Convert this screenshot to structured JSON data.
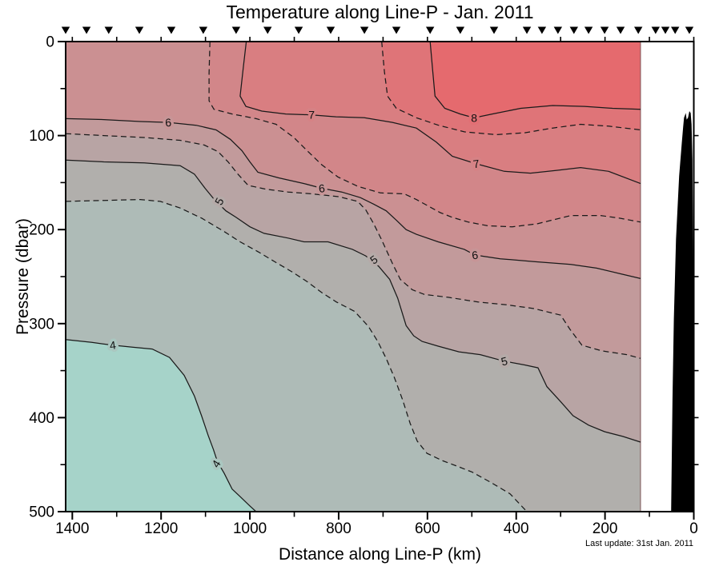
{
  "page": {
    "title": "Temperature along Line-P - Jan. 2011",
    "note": "Last update: 31st Jan. 2011"
  },
  "chart_data": {
    "type": "contour-section",
    "title": "Temperature along Line-P - Jan. 2011",
    "xlabel": "Distance along Line-P (km)",
    "ylabel": "Pressure (dbar)",
    "note": "Last update: 31st Jan. 2011",
    "xlim": [
      1415,
      0
    ],
    "ylim": [
      0,
      500
    ],
    "x_axis": {
      "major": [
        1400,
        1200,
        1000,
        800,
        600,
        400,
        200,
        0
      ],
      "minor": [
        1300,
        1100,
        900,
        700,
        500,
        300,
        100
      ],
      "top_ticks": [
        1400,
        1300,
        1200,
        1100,
        1000,
        900,
        800,
        700,
        600,
        500,
        400,
        300,
        200,
        100,
        0
      ]
    },
    "y_axis": {
      "major": [
        0,
        100,
        200,
        300,
        400,
        500
      ],
      "minor": [
        50,
        150,
        250,
        350,
        450
      ],
      "right_ticks": [
        50,
        100,
        150,
        200,
        250,
        300,
        350,
        400,
        450
      ]
    },
    "data_edge_km": 120,
    "stations_km": [
      1415,
      1368,
      1318,
      1249,
      1177,
      1105,
      1031,
      960,
      890,
      818,
      742,
      670,
      594,
      526,
      450,
      376,
      342,
      306,
      270,
      237,
      201,
      165,
      125,
      86,
      64,
      42,
      10
    ],
    "bands": [
      {
        "range": ">8",
        "color": "#e56a6e"
      },
      {
        "range": "7.5-8",
        "color": "#df7478"
      },
      {
        "range": "7-7.5",
        "color": "#d97e81"
      },
      {
        "range": "6.5-7",
        "color": "#d28689"
      },
      {
        "range": "6-6.5",
        "color": "#cb9092"
      },
      {
        "range": "5.5-6",
        "color": "#c29a9b"
      },
      {
        "range": "5-5.5",
        "color": "#b8a4a4"
      },
      {
        "range": "4.5-5",
        "color": "#b1afac"
      },
      {
        "range": "4-4.5",
        "color": "#aebbb7"
      },
      {
        "range": "<4",
        "color": "#a6d3c9"
      }
    ],
    "contours": [
      {
        "level": 8,
        "style": "solid",
        "points": [
          [
            594,
            0
          ],
          [
            588,
            32
          ],
          [
            583,
            58
          ],
          [
            561,
            71
          ],
          [
            526,
            77
          ],
          [
            495,
            81
          ],
          [
            454,
            77
          ],
          [
            390,
            71
          ],
          [
            318,
            68
          ],
          [
            246,
            69
          ],
          [
            183,
            71
          ],
          [
            120,
            72
          ]
        ]
      },
      {
        "level": 7.5,
        "style": "dashed",
        "points": [
          [
            703,
            0
          ],
          [
            697,
            32
          ],
          [
            690,
            58
          ],
          [
            670,
            71
          ],
          [
            625,
            81
          ],
          [
            575,
            89
          ],
          [
            517,
            96
          ],
          [
            445,
            99
          ],
          [
            381,
            97
          ],
          [
            318,
            92
          ],
          [
            255,
            88
          ],
          [
            192,
            90
          ],
          [
            120,
            94
          ]
        ]
      },
      {
        "level": 7,
        "style": "solid",
        "points": [
          [
            1008,
            0
          ],
          [
            1015,
            28
          ],
          [
            1022,
            58
          ],
          [
            1009,
            69
          ],
          [
            973,
            74
          ],
          [
            919,
            77
          ],
          [
            861,
            78
          ],
          [
            806,
            80
          ],
          [
            742,
            81
          ],
          [
            679,
            86
          ],
          [
            625,
            92
          ],
          [
            580,
            107
          ],
          [
            544,
            122
          ],
          [
            490,
            130
          ],
          [
            427,
            138
          ],
          [
            368,
            140
          ],
          [
            309,
            137
          ],
          [
            255,
            134
          ],
          [
            192,
            138
          ],
          [
            120,
            151
          ]
        ]
      },
      {
        "level": 6.5,
        "style": "dashed",
        "points": [
          [
            1090,
            0
          ],
          [
            1092,
            34
          ],
          [
            1092,
            63
          ],
          [
            1081,
            72
          ],
          [
            1040,
            77
          ],
          [
            986,
            82
          ],
          [
            941,
            88
          ],
          [
            901,
            102
          ],
          [
            869,
            117
          ],
          [
            838,
            131
          ],
          [
            802,
            144
          ],
          [
            757,
            154
          ],
          [
            706,
            161
          ],
          [
            652,
            162
          ],
          [
            625,
            168
          ],
          [
            598,
            175
          ],
          [
            571,
            182
          ],
          [
            544,
            187
          ],
          [
            508,
            192
          ],
          [
            463,
            196
          ],
          [
            409,
            197
          ],
          [
            354,
            194
          ],
          [
            277,
            185
          ],
          [
            210,
            185
          ],
          [
            165,
            188
          ],
          [
            120,
            192
          ]
        ]
      },
      {
        "level": 6,
        "style": "solid",
        "points": [
          [
            1415,
            82
          ],
          [
            1329,
            83
          ],
          [
            1247,
            85
          ],
          [
            1184,
            86
          ],
          [
            1121,
            89
          ],
          [
            1076,
            94
          ],
          [
            1044,
            104
          ],
          [
            1018,
            116
          ],
          [
            1000,
            128
          ],
          [
            982,
            139
          ],
          [
            935,
            145
          ],
          [
            878,
            151
          ],
          [
            838,
            156
          ],
          [
            793,
            160
          ],
          [
            751,
            166
          ],
          [
            721,
            173
          ],
          [
            693,
            180
          ],
          [
            670,
            190
          ],
          [
            648,
            200
          ],
          [
            625,
            205
          ],
          [
            576,
            213
          ],
          [
            517,
            221
          ],
          [
            493,
            227
          ],
          [
            436,
            231
          ],
          [
            360,
            234
          ],
          [
            277,
            237
          ],
          [
            219,
            241
          ],
          [
            165,
            247
          ],
          [
            120,
            252
          ]
        ]
      },
      {
        "level": 5.5,
        "style": "dashed",
        "points": [
          [
            1415,
            98
          ],
          [
            1329,
            100
          ],
          [
            1238,
            102
          ],
          [
            1157,
            105
          ],
          [
            1103,
            110
          ],
          [
            1072,
            117
          ],
          [
            1049,
            128
          ],
          [
            1027,
            141
          ],
          [
            1004,
            153
          ],
          [
            964,
            157
          ],
          [
            914,
            160
          ],
          [
            860,
            162
          ],
          [
            800,
            165
          ],
          [
            757,
            170
          ],
          [
            739,
            179
          ],
          [
            721,
            194
          ],
          [
            703,
            211
          ],
          [
            679,
            236
          ],
          [
            661,
            253
          ],
          [
            634,
            264
          ],
          [
            607,
            269
          ],
          [
            553,
            272
          ],
          [
            486,
            277
          ],
          [
            421,
            280
          ],
          [
            360,
            284
          ],
          [
            300,
            291
          ],
          [
            279,
            306
          ],
          [
            252,
            323
          ],
          [
            207,
            329
          ],
          [
            151,
            333
          ],
          [
            120,
            337
          ]
        ]
      },
      {
        "level": 5,
        "style": "solid",
        "points": [
          [
            1415,
            126
          ],
          [
            1329,
            128
          ],
          [
            1238,
            129
          ],
          [
            1157,
            132
          ],
          [
            1125,
            141
          ],
          [
            1101,
            156
          ],
          [
            1080,
            168
          ],
          [
            1054,
            180
          ],
          [
            1031,
            187
          ],
          [
            1000,
            197
          ],
          [
            968,
            204
          ],
          [
            914,
            209
          ],
          [
            878,
            213
          ],
          [
            824,
            213
          ],
          [
            769,
            221
          ],
          [
            739,
            228
          ],
          [
            710,
            239
          ],
          [
            685,
            253
          ],
          [
            667,
            273
          ],
          [
            648,
            302
          ],
          [
            631,
            313
          ],
          [
            612,
            319
          ],
          [
            576,
            324
          ],
          [
            529,
            330
          ],
          [
            481,
            333
          ],
          [
            427,
            340
          ],
          [
            381,
            344
          ],
          [
            351,
            347
          ],
          [
            331,
            367
          ],
          [
            300,
            383
          ],
          [
            272,
            398
          ],
          [
            237,
            408
          ],
          [
            201,
            415
          ],
          [
            160,
            420
          ],
          [
            120,
            426
          ]
        ]
      },
      {
        "level": 4.5,
        "style": "dashed",
        "points": [
          [
            1415,
            170
          ],
          [
            1329,
            169
          ],
          [
            1247,
            168
          ],
          [
            1202,
            170
          ],
          [
            1157,
            177
          ],
          [
            1108,
            188
          ],
          [
            1058,
            202
          ],
          [
            1022,
            213
          ],
          [
            980,
            224
          ],
          [
            941,
            235
          ],
          [
            905,
            245
          ],
          [
            872,
            255
          ],
          [
            838,
            267
          ],
          [
            805,
            277
          ],
          [
            764,
            287
          ],
          [
            733,
            303
          ],
          [
            712,
            319
          ],
          [
            692,
            338
          ],
          [
            674,
            358
          ],
          [
            656,
            381
          ],
          [
            639,
            406
          ],
          [
            623,
            425
          ],
          [
            601,
            438
          ],
          [
            565,
            446
          ],
          [
            531,
            452
          ],
          [
            499,
            458
          ],
          [
            457,
            469
          ],
          [
            414,
            481
          ],
          [
            376,
            500
          ]
        ]
      },
      {
        "level": 4,
        "style": "solid",
        "points": [
          [
            1415,
            317
          ],
          [
            1356,
            320
          ],
          [
            1309,
            323
          ],
          [
            1265,
            325
          ],
          [
            1220,
            327
          ],
          [
            1181,
            336
          ],
          [
            1148,
            355
          ],
          [
            1125,
            377
          ],
          [
            1109,
            398
          ],
          [
            1094,
            419
          ],
          [
            1082,
            434
          ],
          [
            1073,
            447
          ],
          [
            1058,
            459
          ],
          [
            1040,
            476
          ],
          [
            1022,
            484
          ],
          [
            1000,
            494
          ],
          [
            986,
            500
          ]
        ]
      }
    ],
    "contour_labels": [
      {
        "text": "6",
        "km": 1184,
        "dbar": 86,
        "rot": -4,
        "halo": "#c79597"
      },
      {
        "text": "7",
        "km": 861,
        "dbar": 78,
        "rot": 0,
        "halo": "#d68285"
      },
      {
        "text": "8",
        "km": 495,
        "dbar": 81,
        "rot": 0,
        "halo": "#e26f74"
      },
      {
        "text": "7",
        "km": 490,
        "dbar": 130,
        "rot": -8,
        "halo": "#d68285"
      },
      {
        "text": "6",
        "km": 838,
        "dbar": 156,
        "rot": -6,
        "halo": "#c79597"
      },
      {
        "text": "5",
        "km": 1069,
        "dbar": 170,
        "rot": -62,
        "halo": "#b5aaa8"
      },
      {
        "text": "5",
        "km": 721,
        "dbar": 232,
        "rot": -35,
        "halo": "#b5aaa8"
      },
      {
        "text": "6",
        "km": 493,
        "dbar": 227,
        "rot": -8,
        "halo": "#c79597"
      },
      {
        "text": "4",
        "km": 1309,
        "dbar": 323,
        "rot": -8,
        "halo": "#aac7c0"
      },
      {
        "text": "5",
        "km": 427,
        "dbar": 340,
        "rot": -14,
        "halo": "#b5aaa8"
      },
      {
        "text": "4",
        "km": 1076,
        "dbar": 449,
        "rot": -58,
        "halo": "#aac7c0"
      }
    ],
    "bathymetry": [
      [
        51,
        500
      ],
      [
        48,
        380
      ],
      [
        45,
        295
      ],
      [
        40,
        210
      ],
      [
        33,
        143
      ],
      [
        27,
        108
      ],
      [
        24,
        91
      ],
      [
        22,
        81
      ],
      [
        18,
        76
      ],
      [
        16,
        83
      ],
      [
        13,
        81
      ],
      [
        10,
        74
      ],
      [
        7,
        76
      ],
      [
        5,
        88
      ],
      [
        3,
        125
      ],
      [
        2,
        210
      ],
      [
        1,
        320
      ],
      [
        0,
        500
      ]
    ]
  }
}
